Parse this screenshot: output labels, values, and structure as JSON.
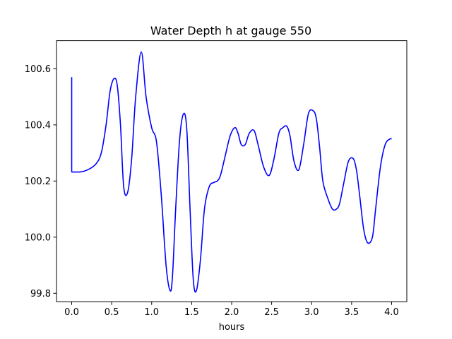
{
  "chart_data": {
    "type": "line",
    "title": "Water Depth h at gauge 550",
    "xlabel": "hours",
    "ylabel": "",
    "xlim": [
      -0.19,
      4.19
    ],
    "ylim": [
      99.77,
      100.7
    ],
    "xticks": [
      0.0,
      0.5,
      1.0,
      1.5,
      2.0,
      2.5,
      3.0,
      3.5,
      4.0
    ],
    "xtick_labels": [
      "0.0",
      "0.5",
      "1.0",
      "1.5",
      "2.0",
      "2.5",
      "3.0",
      "3.5",
      "4.0"
    ],
    "yticks": [
      99.8,
      100.0,
      100.2,
      100.4,
      100.6
    ],
    "ytick_labels": [
      "99.8",
      "100.0",
      "100.2",
      "100.4",
      "100.6"
    ],
    "grid": false,
    "legend": "none",
    "series": [
      {
        "color": "#0000ff",
        "x": [
          0.0,
          0.0,
          0.003,
          0.1,
          0.2,
          0.3,
          0.37,
          0.43,
          0.48,
          0.53,
          0.57,
          0.61,
          0.65,
          0.7,
          0.75,
          0.8,
          0.87,
          0.93,
          1.0,
          1.06,
          1.12,
          1.18,
          1.23,
          1.26,
          1.3,
          1.35,
          1.4,
          1.44,
          1.48,
          1.52,
          1.56,
          1.61,
          1.66,
          1.72,
          1.78,
          1.82,
          1.86,
          1.92,
          1.98,
          2.04,
          2.08,
          2.12,
          2.17,
          2.22,
          2.28,
          2.33,
          2.4,
          2.47,
          2.53,
          2.59,
          2.64,
          2.69,
          2.73,
          2.78,
          2.84,
          2.9,
          2.96,
          3.02,
          3.06,
          3.1,
          3.14,
          3.2,
          3.26,
          3.31,
          3.35,
          3.4,
          3.46,
          3.52,
          3.56,
          3.6,
          3.65,
          3.7,
          3.76,
          3.8,
          3.86,
          3.92,
          3.98,
          4.0
        ],
        "values": [
          100.57,
          100.233,
          100.232,
          100.232,
          100.24,
          100.26,
          100.3,
          100.4,
          100.52,
          100.565,
          100.54,
          100.4,
          100.18,
          100.16,
          100.28,
          100.5,
          100.66,
          100.5,
          100.39,
          100.34,
          100.15,
          99.9,
          99.81,
          99.86,
          100.1,
          100.35,
          100.44,
          100.38,
          100.1,
          99.85,
          99.81,
          99.92,
          100.1,
          100.18,
          100.195,
          100.2,
          100.22,
          100.29,
          100.36,
          100.39,
          100.37,
          100.33,
          100.33,
          100.37,
          100.38,
          100.33,
          100.25,
          100.22,
          100.28,
          100.37,
          100.39,
          100.395,
          100.36,
          100.27,
          100.24,
          100.33,
          100.44,
          100.45,
          100.42,
          100.32,
          100.2,
          100.14,
          100.1,
          100.1,
          100.12,
          100.19,
          100.27,
          100.28,
          100.24,
          100.15,
          100.03,
          99.98,
          100.0,
          100.1,
          100.25,
          100.33,
          100.35,
          100.35
        ]
      }
    ]
  }
}
